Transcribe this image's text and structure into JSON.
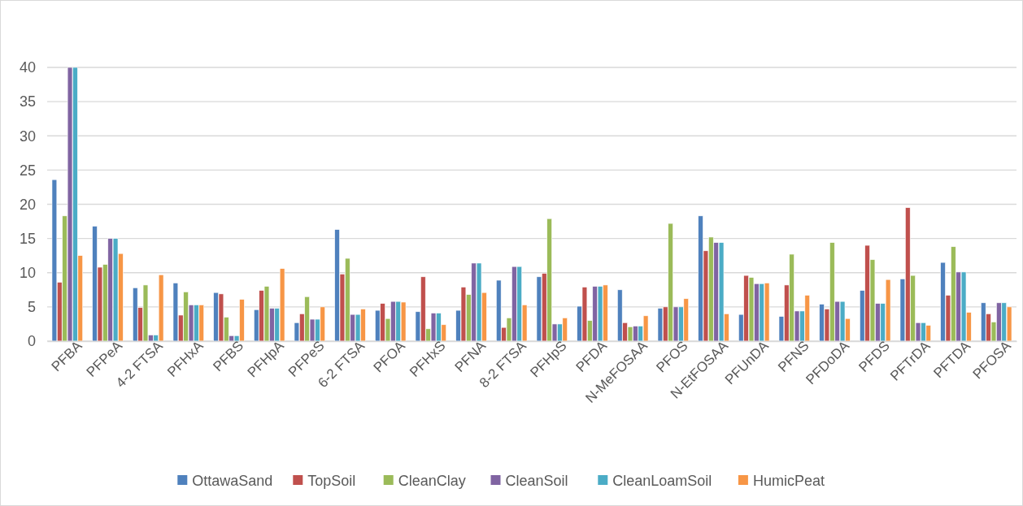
{
  "chart_data": {
    "type": "bar",
    "categories": [
      "PFBA",
      "PFPeA",
      "4-2 FTSA",
      "PFHxA",
      "PFBS",
      "PFHpA",
      "PFPeS",
      "6-2 FTSA",
      "PFOA",
      "PFHxS",
      "PFNA",
      "8-2 FTSA",
      "PFHpS",
      "PFDA",
      "N-MeFOSAA",
      "PFOS",
      "N-EtFOSAA",
      "PFUnDA",
      "PFNS",
      "PFDoDA",
      "PFDS",
      "PFTrDA",
      "PFTDA",
      "PFOSA"
    ],
    "series": [
      {
        "name": "OttawaSand",
        "color": "#4f81bd",
        "values": [
          23.6,
          16.8,
          7.8,
          8.5,
          7.1,
          4.6,
          2.7,
          16.3,
          4.5,
          4.3,
          4.5,
          8.9,
          9.4,
          5.1,
          7.5,
          4.8,
          18.3,
          3.9,
          3.6,
          5.4,
          7.4,
          9.1,
          11.5,
          5.6
        ]
      },
      {
        "name": "TopSoil",
        "color": "#c0504d",
        "values": [
          8.6,
          10.8,
          4.9,
          3.8,
          6.9,
          7.4,
          4.0,
          9.8,
          5.5,
          9.4,
          7.9,
          2.0,
          9.9,
          7.9,
          2.7,
          5.0,
          13.2,
          9.6,
          8.2,
          4.7,
          14.0,
          19.5,
          6.7,
          4.0
        ]
      },
      {
        "name": "CleanClay",
        "color": "#9bbb59",
        "values": [
          18.3,
          11.2,
          8.2,
          7.2,
          3.5,
          8.0,
          6.5,
          12.1,
          3.3,
          1.8,
          6.8,
          3.4,
          17.9,
          3.0,
          2.1,
          17.2,
          15.2,
          9.3,
          12.7,
          14.4,
          11.9,
          9.6,
          13.8,
          2.8
        ]
      },
      {
        "name": "CleanSoil",
        "color": "#8064a2",
        "values": [
          40,
          15,
          0.9,
          5.3,
          0.8,
          4.8,
          3.2,
          3.9,
          5.8,
          4.1,
          11.4,
          10.9,
          2.5,
          8.0,
          2.2,
          5.0,
          14.4,
          8.4,
          4.4,
          5.8,
          5.5,
          2.7,
          10.1,
          5.6
        ]
      },
      {
        "name": "CleanLoamSoil",
        "color": "#4bacc6",
        "values": [
          40,
          15,
          0.9,
          5.3,
          0.8,
          4.8,
          3.2,
          3.9,
          5.8,
          4.1,
          11.4,
          10.9,
          2.5,
          8.0,
          2.2,
          5.0,
          14.4,
          8.4,
          4.4,
          5.8,
          5.5,
          2.7,
          10.1,
          5.6
        ]
      },
      {
        "name": "HumicPeat",
        "color": "#f79646",
        "values": [
          12.5,
          12.8,
          9.7,
          5.3,
          6.1,
          10.6,
          5.0,
          4.7,
          5.7,
          2.4,
          7.1,
          5.3,
          3.4,
          8.2,
          3.7,
          6.2,
          4.0,
          8.5,
          6.7,
          3.3,
          9.0,
          2.3,
          4.2,
          5.0
        ]
      }
    ],
    "ylim": [
      0,
      40
    ],
    "yticks": [
      0,
      5,
      10,
      15,
      20,
      25,
      30,
      35,
      40
    ],
    "grid": "y",
    "legend": "bottom"
  }
}
